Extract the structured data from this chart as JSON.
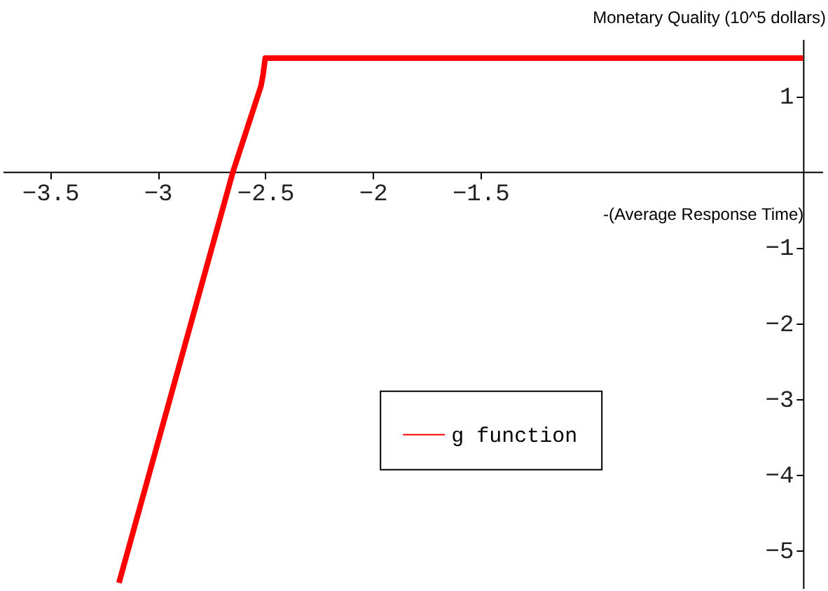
{
  "chart_data": {
    "type": "line",
    "xlabel": "-(Average Response Time)",
    "ylabel": "Monetary Quality (10^5 dollars)",
    "series": [
      {
        "name": "g function",
        "color": "#ff0000",
        "x": [
          -3.18,
          -2.65,
          -2.52,
          -2.51,
          -2.5,
          -0.0
        ],
        "values": [
          -5.43,
          0.0,
          1.13,
          1.28,
          1.5,
          1.5
        ]
      }
    ],
    "xlim": [
      -3.72,
      0.09
    ],
    "ylim": [
      -5.5,
      1.75
    ],
    "xticks": [
      -3.5,
      -3,
      -2.5,
      -2,
      -1.5
    ],
    "yticks": [
      -5,
      -4,
      -3,
      -2,
      -1,
      1
    ],
    "grid": false,
    "legend": "bottom right",
    "marker": "none",
    "line_style": "solid"
  }
}
